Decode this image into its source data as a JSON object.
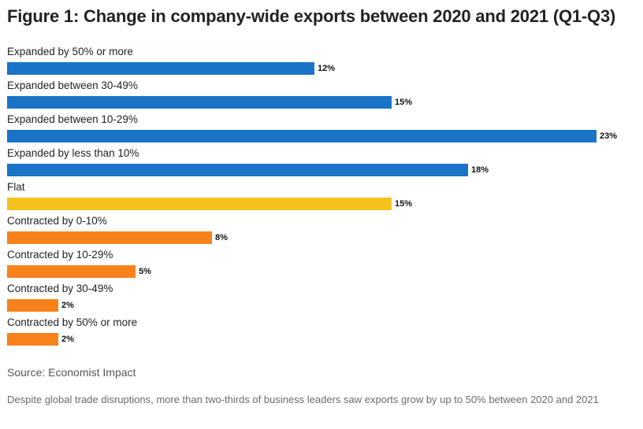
{
  "chart_data": {
    "type": "bar",
    "orientation": "horizontal",
    "title": "Figure 1: Change in company-wide exports between 2020 and 2021 (Q1-Q3)",
    "categories": [
      "Expanded by 50% or more",
      "Expanded between 30-49%",
      "Expanded between 10-29%",
      "Expanded by less than 10%",
      "Flat",
      "Contracted by 0-10%",
      "Contracted by 10-29%",
      "Contracted by 30-49%",
      "Contracted by 50% or more"
    ],
    "values": [
      12,
      15,
      23,
      18,
      15,
      8,
      5,
      2,
      2
    ],
    "value_labels": [
      "12%",
      "15%",
      "23%",
      "18%",
      "15%",
      "8%",
      "5%",
      "2%",
      "2%"
    ],
    "bar_colors": [
      "#1a73c7",
      "#1a73c7",
      "#1a73c7",
      "#1a73c7",
      "#f5c21b",
      "#f7821b",
      "#f7821b",
      "#f7821b",
      "#f7821b"
    ],
    "xlim": [
      0,
      23
    ],
    "grid": false,
    "legend": "none",
    "source": "Source: Economist Impact"
  },
  "caption": "Despite global trade disruptions, more than two-thirds of business leaders saw exports grow by up to 50% between 2020 and 2021"
}
